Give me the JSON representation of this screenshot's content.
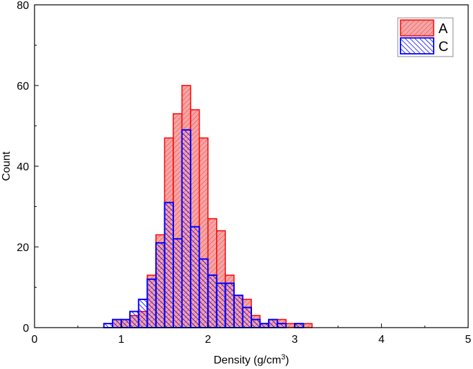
{
  "chart_data": {
    "type": "bar",
    "subtype": "overlaid-histogram",
    "title": "",
    "xlabel": "Density (g/cm3)",
    "xlabel_parts": {
      "main": "Density (g/cm",
      "sup": "3",
      "end": ")"
    },
    "ylabel": "Count",
    "xlim": [
      0,
      5
    ],
    "ylim": [
      0,
      80
    ],
    "xticks": [
      0,
      1,
      2,
      3,
      4,
      5
    ],
    "yticks": [
      0,
      20,
      40,
      60,
      80
    ],
    "grid": false,
    "legend_position": "top-right",
    "bin_width": 0.1,
    "bin_starts": [
      0.8,
      0.9,
      1.0,
      1.1,
      1.2,
      1.3,
      1.4,
      1.5,
      1.6,
      1.7,
      1.8,
      1.9,
      2.0,
      2.1,
      2.2,
      2.3,
      2.4,
      2.5,
      2.6,
      2.7,
      2.8,
      2.9,
      3.0,
      3.1
    ],
    "series": [
      {
        "name": "A",
        "color": "#ff0000",
        "fill": "#f4a0a0",
        "hatch": "forward-diagonal",
        "values": [
          0,
          2,
          2,
          3,
          4,
          13,
          23,
          47,
          53,
          60,
          54,
          47,
          27,
          24,
          13,
          8,
          7,
          3,
          1,
          2,
          2,
          1,
          1,
          1
        ]
      },
      {
        "name": "C",
        "color": "#0000ff",
        "fill": "none",
        "hatch": "back-diagonal",
        "values": [
          1,
          2,
          2,
          4,
          7,
          12,
          21,
          31,
          22,
          49,
          25,
          17,
          13,
          11,
          11,
          8,
          5,
          2,
          1,
          2,
          1,
          0,
          1,
          0
        ]
      }
    ]
  }
}
